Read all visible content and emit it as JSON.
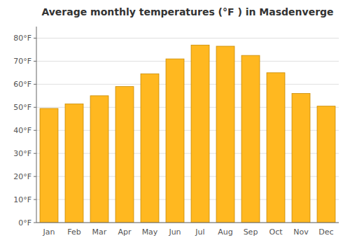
{
  "chart_data": {
    "type": "bar",
    "title": "Average monthly temperatures (°F ) in Masdenverge",
    "categories": [
      "Jan",
      "Feb",
      "Mar",
      "Apr",
      "May",
      "Jun",
      "Jul",
      "Aug",
      "Sep",
      "Oct",
      "Nov",
      "Dec"
    ],
    "values": [
      49.5,
      51.5,
      55.0,
      59.0,
      64.5,
      71.0,
      77.0,
      76.5,
      72.5,
      65.0,
      56.0,
      50.5
    ],
    "color": "#FFB820",
    "ylim": [
      0,
      85
    ],
    "yticks": [
      {
        "value": 0,
        "label": "0°F"
      },
      {
        "value": 10,
        "label": "10°F"
      },
      {
        "value": 20,
        "label": "20°F"
      },
      {
        "value": 30,
        "label": "30°F"
      },
      {
        "value": 40,
        "label": "40°F"
      },
      {
        "value": 50,
        "label": "50°F"
      },
      {
        "value": 60,
        "label": "60°F"
      },
      {
        "value": 70,
        "label": "70°F"
      },
      {
        "value": 80,
        "label": "80°F"
      }
    ],
    "grid": true
  }
}
